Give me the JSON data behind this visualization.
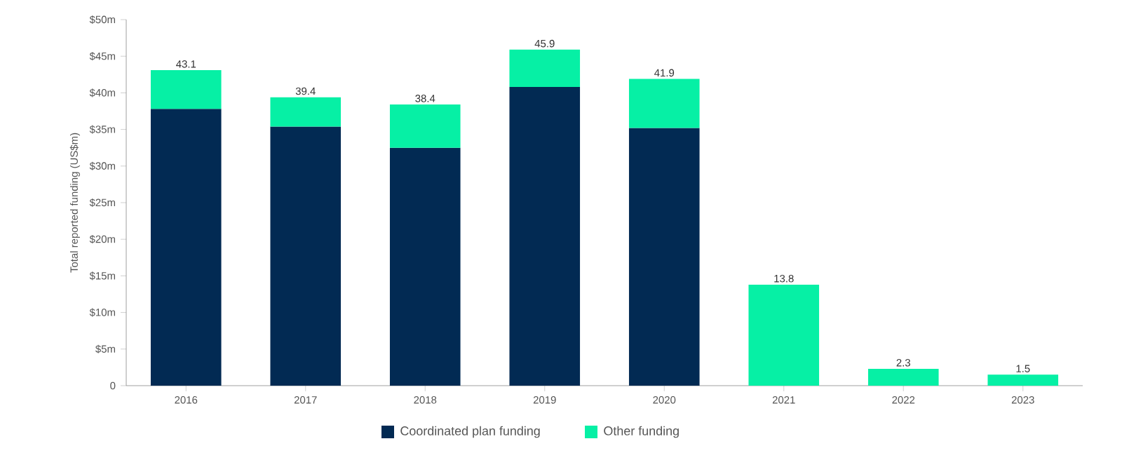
{
  "chart_data": {
    "type": "bar",
    "stacked": true,
    "ylabel": "Total reported funding (US$m)",
    "categories": [
      "2016",
      "2017",
      "2018",
      "2019",
      "2020",
      "2021",
      "2022",
      "2023"
    ],
    "series": [
      {
        "name": "Coordinated plan funding",
        "color": "#022a53",
        "values": [
          37.8,
          35.4,
          32.5,
          40.8,
          35.2,
          null,
          null,
          null
        ]
      },
      {
        "name": "Other funding",
        "color": "#06f0a5",
        "values": [
          5.3,
          4.0,
          5.9,
          5.1,
          6.7,
          13.8,
          2.3,
          1.5
        ]
      }
    ],
    "totals": [
      "43.1",
      "39.4",
      "38.4",
      "45.9",
      "41.9",
      "13.8",
      "2.3",
      "1.5"
    ],
    "ylim": [
      0,
      50
    ],
    "yticks": [
      0,
      {
        "value": 5,
        "label": "$5m"
      },
      {
        "value": 10,
        "label": "$10m"
      },
      {
        "value": 15,
        "label": "$15m"
      },
      {
        "value": 20,
        "label": "$20m"
      },
      {
        "value": 25,
        "label": "$25m"
      },
      {
        "value": 30,
        "label": "$30m"
      },
      {
        "value": 35,
        "label": "$35m"
      },
      {
        "value": 40,
        "label": "$40m"
      },
      {
        "value": 45,
        "label": "$45m"
      },
      {
        "value": 50,
        "label": "$50m"
      }
    ],
    "grid": false,
    "legend": "bottom"
  }
}
